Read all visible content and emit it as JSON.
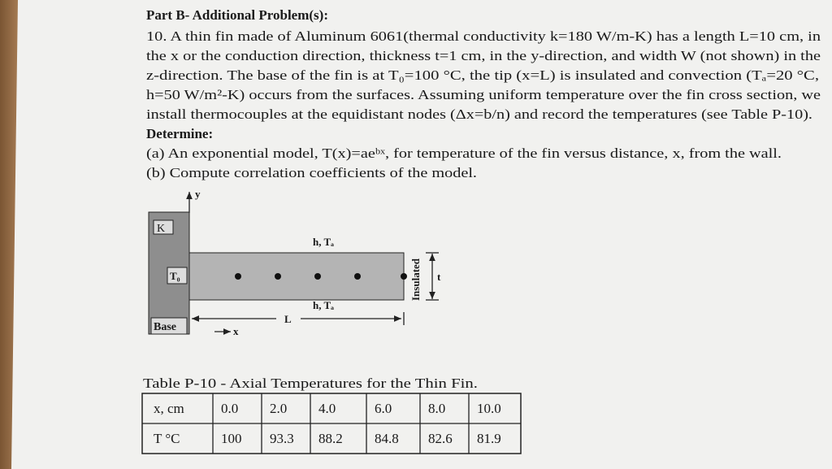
{
  "heading": "Part B- Additional Problem(s):",
  "problem": {
    "lines": [
      "10. A thin fin made of Aluminum 6061(thermal conductivity k=180 W/m-K) has a length L=10 cm, in",
      "the x or the conduction direction, thickness t=1 cm,  in the y-direction, and width W (not shown) in the",
      "z-direction.  The base of the fin is at T₀=100 °C, the tip (x=L) is insulated and convection (Tₐ=20 °C,",
      "h=50 W/m²-K) occurs from the surfaces.  Assuming uniform temperature over the fin cross section, we",
      "install thermocouples  at the equidistant nodes (Δx=b/n) and record the temperatures (see Table P-10)."
    ]
  },
  "determine": {
    "label": "Determine:",
    "items": [
      "(a) An exponential model, T(x)=aeᵇˣ, for temperature of the fin versus distance, x, from the wall.",
      "(b) Compute correlation coefficients of the model."
    ]
  },
  "figure": {
    "y_axis": "y",
    "wall": "K",
    "top_label": "h, Tₐ",
    "base_temp": "T₀",
    "bottom_label": "h, Tₐ",
    "tip": "Insulated",
    "thickness": "t",
    "length": "L",
    "base": "Base",
    "x_axis": "x"
  },
  "table": {
    "caption": "Table P-10 - Axial Temperatures for the Thin Fin.",
    "rows": [
      [
        "x, cm",
        "0.0",
        "2.0",
        "4.0",
        "6.0",
        "8.0",
        "10.0"
      ],
      [
        "T °C",
        "100",
        "93.3",
        "88.2",
        "84.8",
        "82.6",
        "81.9"
      ]
    ]
  }
}
